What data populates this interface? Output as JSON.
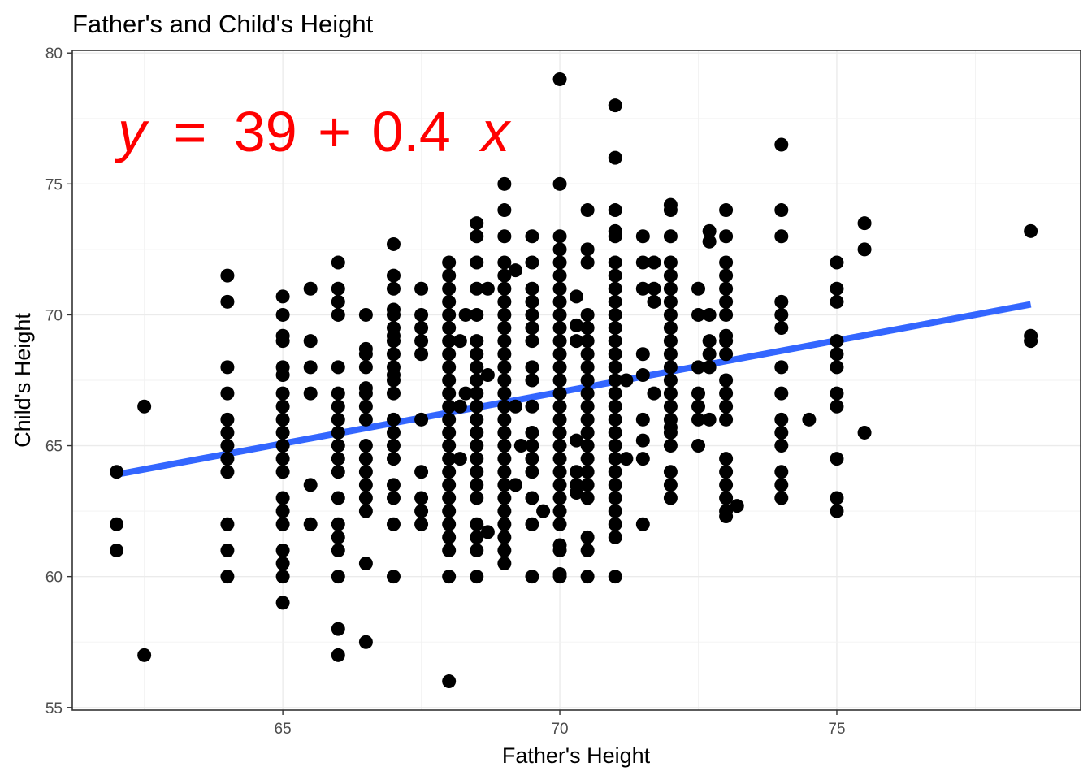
{
  "chart_data": {
    "type": "scatter",
    "title": "Father's and Child's Height",
    "xlabel": "Father's Height",
    "ylabel": "Child's Height",
    "xlim": [
      61.2,
      79.4
    ],
    "ylim": [
      54.9,
      80.1
    ],
    "x_ticks": [
      65,
      70,
      75
    ],
    "y_ticks": [
      55,
      60,
      65,
      70,
      75,
      80
    ],
    "grid": true,
    "annotation": {
      "y_var": "y",
      "equals": "=",
      "intercept": "39",
      "plus": "+",
      "slope": "0.4",
      "x_var": "x",
      "color": "#ff0000"
    },
    "fit_line": {
      "intercept": 39,
      "slope": 0.4,
      "x_range": [
        62,
        78.5
      ],
      "y_range": [
        63.9,
        70.4
      ],
      "color": "#3366ff"
    },
    "point_color": "#000000",
    "points": [
      [
        62,
        64
      ],
      [
        62,
        62
      ],
      [
        62,
        61
      ],
      [
        62.5,
        66.5
      ],
      [
        62.5,
        57
      ],
      [
        64,
        71.5
      ],
      [
        64,
        70.5
      ],
      [
        64,
        68
      ],
      [
        64,
        67
      ],
      [
        64,
        66
      ],
      [
        64,
        65.5
      ],
      [
        64,
        65
      ],
      [
        64,
        64.5
      ],
      [
        64,
        64
      ],
      [
        64,
        62
      ],
      [
        64,
        61
      ],
      [
        64,
        60
      ],
      [
        65,
        70.7
      ],
      [
        65,
        70
      ],
      [
        65,
        69.2
      ],
      [
        65,
        69
      ],
      [
        65,
        68
      ],
      [
        65,
        67.7
      ],
      [
        65,
        67
      ],
      [
        65,
        66.5
      ],
      [
        65,
        66
      ],
      [
        65,
        65.5
      ],
      [
        65,
        65
      ],
      [
        65,
        64.5
      ],
      [
        65,
        64
      ],
      [
        65,
        63
      ],
      [
        65,
        62.5
      ],
      [
        65,
        62
      ],
      [
        65,
        61
      ],
      [
        65,
        60.5
      ],
      [
        65,
        60
      ],
      [
        65,
        59
      ],
      [
        65.5,
        71
      ],
      [
        65.5,
        69
      ],
      [
        65.5,
        68
      ],
      [
        65.5,
        67
      ],
      [
        65.5,
        63.5
      ],
      [
        65.5,
        62
      ],
      [
        66,
        72
      ],
      [
        66,
        71
      ],
      [
        66,
        70.5
      ],
      [
        66,
        70
      ],
      [
        66,
        68
      ],
      [
        66,
        67
      ],
      [
        66,
        66.5
      ],
      [
        66,
        66
      ],
      [
        66,
        65.5
      ],
      [
        66,
        65
      ],
      [
        66,
        64.5
      ],
      [
        66,
        64
      ],
      [
        66,
        63
      ],
      [
        66,
        62
      ],
      [
        66,
        61.5
      ],
      [
        66,
        61
      ],
      [
        66,
        60
      ],
      [
        66,
        58
      ],
      [
        66,
        57
      ],
      [
        66.5,
        70
      ],
      [
        66.5,
        68.7
      ],
      [
        66.5,
        68.5
      ],
      [
        66.5,
        68
      ],
      [
        66.5,
        67.2
      ],
      [
        66.5,
        67
      ],
      [
        66.5,
        66.5
      ],
      [
        66.5,
        66
      ],
      [
        66.5,
        65
      ],
      [
        66.5,
        64.5
      ],
      [
        66.5,
        64
      ],
      [
        66.5,
        63.5
      ],
      [
        66.5,
        63
      ],
      [
        66.5,
        62.5
      ],
      [
        66.5,
        60.5
      ],
      [
        66.5,
        57.5
      ],
      [
        67,
        72.7
      ],
      [
        67,
        71.5
      ],
      [
        67,
        71
      ],
      [
        67,
        70.2
      ],
      [
        67,
        70
      ],
      [
        67,
        69.5
      ],
      [
        67,
        69.2
      ],
      [
        67,
        69
      ],
      [
        67,
        68.5
      ],
      [
        67,
        68
      ],
      [
        67,
        67.7
      ],
      [
        67,
        67.5
      ],
      [
        67,
        67
      ],
      [
        67,
        66
      ],
      [
        67,
        65.5
      ],
      [
        67,
        65
      ],
      [
        67,
        64.5
      ],
      [
        67,
        63.5
      ],
      [
        67,
        63
      ],
      [
        67,
        62
      ],
      [
        67,
        60
      ],
      [
        67.5,
        71
      ],
      [
        67.5,
        70
      ],
      [
        67.5,
        69.5
      ],
      [
        67.5,
        69
      ],
      [
        67.5,
        68.5
      ],
      [
        67.5,
        66
      ],
      [
        67.5,
        64
      ],
      [
        67.5,
        63
      ],
      [
        67.5,
        62.5
      ],
      [
        67.5,
        62
      ],
      [
        68,
        72
      ],
      [
        68,
        71.5
      ],
      [
        68,
        71
      ],
      [
        68,
        70.5
      ],
      [
        68,
        70
      ],
      [
        68,
        69.5
      ],
      [
        68,
        69
      ],
      [
        68,
        68.5
      ],
      [
        68,
        68
      ],
      [
        68,
        67.5
      ],
      [
        68,
        67
      ],
      [
        68,
        66.5
      ],
      [
        68,
        66
      ],
      [
        68,
        65.5
      ],
      [
        68,
        65
      ],
      [
        68,
        64.5
      ],
      [
        68,
        64
      ],
      [
        68,
        63.5
      ],
      [
        68,
        63
      ],
      [
        68,
        62.5
      ],
      [
        68,
        62
      ],
      [
        68,
        61.5
      ],
      [
        68,
        61
      ],
      [
        68,
        60
      ],
      [
        68,
        56
      ],
      [
        68.2,
        69
      ],
      [
        68.2,
        66.5
      ],
      [
        68.2,
        64.5
      ],
      [
        68.3,
        70
      ],
      [
        68.3,
        67
      ],
      [
        68.5,
        73.5
      ],
      [
        68.5,
        73
      ],
      [
        68.5,
        72
      ],
      [
        68.5,
        71
      ],
      [
        68.5,
        70
      ],
      [
        68.5,
        69
      ],
      [
        68.5,
        68.5
      ],
      [
        68.5,
        68
      ],
      [
        68.5,
        67.5
      ],
      [
        68.5,
        67
      ],
      [
        68.5,
        66.5
      ],
      [
        68.5,
        66
      ],
      [
        68.5,
        65.5
      ],
      [
        68.5,
        65
      ],
      [
        68.5,
        64.5
      ],
      [
        68.5,
        64
      ],
      [
        68.5,
        63.5
      ],
      [
        68.5,
        63
      ],
      [
        68.5,
        62
      ],
      [
        68.5,
        61.5
      ],
      [
        68.5,
        61
      ],
      [
        68.5,
        60
      ],
      [
        68.7,
        71
      ],
      [
        68.7,
        67.7
      ],
      [
        68.7,
        61.7
      ],
      [
        69,
        75
      ],
      [
        69,
        74
      ],
      [
        69,
        73
      ],
      [
        69,
        72
      ],
      [
        69,
        71.5
      ],
      [
        69,
        71
      ],
      [
        69,
        70.5
      ],
      [
        69,
        70
      ],
      [
        69,
        69.5
      ],
      [
        69,
        69
      ],
      [
        69,
        68.5
      ],
      [
        69,
        68
      ],
      [
        69,
        67.5
      ],
      [
        69,
        67
      ],
      [
        69,
        66.5
      ],
      [
        69,
        66
      ],
      [
        69,
        65.5
      ],
      [
        69,
        65
      ],
      [
        69,
        64.5
      ],
      [
        69,
        64
      ],
      [
        69,
        63.5
      ],
      [
        69,
        63
      ],
      [
        69,
        62.5
      ],
      [
        69,
        62
      ],
      [
        69,
        61.5
      ],
      [
        69,
        61
      ],
      [
        69,
        60.5
      ],
      [
        69.2,
        71.7
      ],
      [
        69.2,
        66.5
      ],
      [
        69.2,
        63.5
      ],
      [
        69.3,
        65
      ],
      [
        69.5,
        73
      ],
      [
        69.5,
        72
      ],
      [
        69.5,
        71
      ],
      [
        69.5,
        70.5
      ],
      [
        69.5,
        70
      ],
      [
        69.5,
        69.5
      ],
      [
        69.5,
        69
      ],
      [
        69.5,
        68
      ],
      [
        69.5,
        67.5
      ],
      [
        69.5,
        66.5
      ],
      [
        69.5,
        65.5
      ],
      [
        69.5,
        65
      ],
      [
        69.5,
        64.5
      ],
      [
        69.5,
        64
      ],
      [
        69.5,
        63
      ],
      [
        69.5,
        62
      ],
      [
        69.5,
        60
      ],
      [
        69.7,
        62.5
      ],
      [
        70,
        79
      ],
      [
        70,
        75
      ],
      [
        70,
        73
      ],
      [
        70,
        72.5
      ],
      [
        70,
        72
      ],
      [
        70,
        71.5
      ],
      [
        70,
        71
      ],
      [
        70,
        70.5
      ],
      [
        70,
        70
      ],
      [
        70,
        69.5
      ],
      [
        70,
        69
      ],
      [
        70,
        68.5
      ],
      [
        70,
        68
      ],
      [
        70,
        67.5
      ],
      [
        70,
        67
      ],
      [
        70,
        66.5
      ],
      [
        70,
        66
      ],
      [
        70,
        65.5
      ],
      [
        70,
        65
      ],
      [
        70,
        64.5
      ],
      [
        70,
        64
      ],
      [
        70,
        63.5
      ],
      [
        70,
        63
      ],
      [
        70,
        62.5
      ],
      [
        70,
        62
      ],
      [
        70,
        61.2
      ],
      [
        70,
        61
      ],
      [
        70,
        60.1
      ],
      [
        70,
        60
      ],
      [
        70.3,
        70.7
      ],
      [
        70.3,
        69.6
      ],
      [
        70.3,
        69
      ],
      [
        70.3,
        65.2
      ],
      [
        70.3,
        64
      ],
      [
        70.3,
        63.5
      ],
      [
        70.3,
        63.2
      ],
      [
        70.5,
        74
      ],
      [
        70.5,
        72.5
      ],
      [
        70.5,
        72
      ],
      [
        70.5,
        70
      ],
      [
        70.5,
        69.5
      ],
      [
        70.5,
        69
      ],
      [
        70.5,
        68.5
      ],
      [
        70.5,
        68
      ],
      [
        70.5,
        67.5
      ],
      [
        70.5,
        67
      ],
      [
        70.5,
        66.5
      ],
      [
        70.5,
        66
      ],
      [
        70.5,
        65.5
      ],
      [
        70.5,
        65
      ],
      [
        70.5,
        64.5
      ],
      [
        70.5,
        64
      ],
      [
        70.5,
        63.5
      ],
      [
        70.5,
        63
      ],
      [
        70.5,
        61.5
      ],
      [
        70.5,
        61
      ],
      [
        70.5,
        60
      ],
      [
        71,
        78
      ],
      [
        71,
        76
      ],
      [
        71,
        74
      ],
      [
        71,
        73.2
      ],
      [
        71,
        73
      ],
      [
        71,
        72
      ],
      [
        71,
        71.5
      ],
      [
        71,
        71
      ],
      [
        71,
        70.5
      ],
      [
        71,
        70
      ],
      [
        71,
        69.5
      ],
      [
        71,
        69
      ],
      [
        71,
        68.5
      ],
      [
        71,
        68
      ],
      [
        71,
        67.5
      ],
      [
        71,
        67
      ],
      [
        71,
        66.5
      ],
      [
        71,
        66
      ],
      [
        71,
        65.5
      ],
      [
        71,
        65
      ],
      [
        71,
        64.5
      ],
      [
        71,
        64
      ],
      [
        71,
        63.5
      ],
      [
        71,
        63
      ],
      [
        71,
        62.5
      ],
      [
        71,
        62
      ],
      [
        71,
        61.5
      ],
      [
        71,
        60
      ],
      [
        71.2,
        67.5
      ],
      [
        71.2,
        64.5
      ],
      [
        71.5,
        73
      ],
      [
        71.5,
        72
      ],
      [
        71.5,
        71
      ],
      [
        71.5,
        68.5
      ],
      [
        71.5,
        67.7
      ],
      [
        71.5,
        66
      ],
      [
        71.5,
        65.2
      ],
      [
        71.5,
        64.5
      ],
      [
        71.5,
        62
      ],
      [
        71.7,
        72
      ],
      [
        71.7,
        71
      ],
      [
        71.7,
        70.5
      ],
      [
        71.7,
        67
      ],
      [
        72,
        74.2
      ],
      [
        72,
        74
      ],
      [
        72,
        73
      ],
      [
        72,
        72
      ],
      [
        72,
        71.5
      ],
      [
        72,
        71
      ],
      [
        72,
        70.5
      ],
      [
        72,
        70
      ],
      [
        72,
        69.5
      ],
      [
        72,
        69
      ],
      [
        72,
        68.5
      ],
      [
        72,
        68
      ],
      [
        72,
        67.5
      ],
      [
        72,
        67
      ],
      [
        72,
        66.5
      ],
      [
        72,
        66
      ],
      [
        72,
        65.7
      ],
      [
        72,
        65.5
      ],
      [
        72,
        65
      ],
      [
        72,
        64
      ],
      [
        72,
        63.5
      ],
      [
        72,
        63
      ],
      [
        72.5,
        71
      ],
      [
        72.5,
        70
      ],
      [
        72.5,
        68
      ],
      [
        72.5,
        67
      ],
      [
        72.5,
        66.5
      ],
      [
        72.5,
        66
      ],
      [
        72.5,
        65
      ],
      [
        72.7,
        73.2
      ],
      [
        72.7,
        72.8
      ],
      [
        72.7,
        70
      ],
      [
        72.7,
        69
      ],
      [
        72.7,
        68.5
      ],
      [
        72.7,
        68
      ],
      [
        72.7,
        66
      ],
      [
        73,
        74
      ],
      [
        73,
        73
      ],
      [
        73,
        72
      ],
      [
        73,
        71.5
      ],
      [
        73,
        71
      ],
      [
        73,
        70.5
      ],
      [
        73,
        70
      ],
      [
        73,
        69.2
      ],
      [
        73,
        69
      ],
      [
        73,
        68.5
      ],
      [
        73,
        67.5
      ],
      [
        73,
        67
      ],
      [
        73,
        66.5
      ],
      [
        73,
        66
      ],
      [
        73,
        64.5
      ],
      [
        73,
        64
      ],
      [
        73,
        63.5
      ],
      [
        73,
        63
      ],
      [
        73,
        62.5
      ],
      [
        73,
        62.3
      ],
      [
        73.2,
        62.7
      ],
      [
        74,
        76.5
      ],
      [
        74,
        74
      ],
      [
        74,
        73
      ],
      [
        74,
        70.5
      ],
      [
        74,
        70
      ],
      [
        74,
        69.5
      ],
      [
        74,
        68
      ],
      [
        74,
        67
      ],
      [
        74,
        66
      ],
      [
        74,
        65.5
      ],
      [
        74,
        65
      ],
      [
        74,
        64
      ],
      [
        74,
        63.5
      ],
      [
        74,
        63
      ],
      [
        74.5,
        66
      ],
      [
        75,
        72
      ],
      [
        75,
        71
      ],
      [
        75,
        70.5
      ],
      [
        75,
        69
      ],
      [
        75,
        68.5
      ],
      [
        75,
        68
      ],
      [
        75,
        67
      ],
      [
        75,
        66.5
      ],
      [
        75,
        64.5
      ],
      [
        75,
        63
      ],
      [
        75,
        62.5
      ],
      [
        75.5,
        73.5
      ],
      [
        75.5,
        72.5
      ],
      [
        75.5,
        65.5
      ],
      [
        78.5,
        73.2
      ],
      [
        78.5,
        69.2
      ],
      [
        78.5,
        69
      ]
    ]
  }
}
